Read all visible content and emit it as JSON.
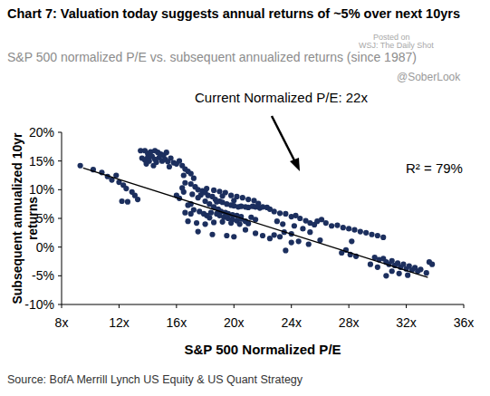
{
  "chart_data": {
    "type": "scatter",
    "title": "Chart 7: Valuation today suggests annual returns of ~5% over next 10yrs",
    "subtitle": "S&P 500 normalized P/E vs. subsequent annualized returns (since 1987)",
    "x_label": "S&P 500 Normalized P/E",
    "y_label": "Subsequent annualized 10yr returns",
    "source": "Source: BofA Merrill Lynch US Equity & US Quant Strategy",
    "annotations": [
      "Current Normalized P/E: 22x",
      "R² = 79%",
      "@SoberLook",
      "Posted on",
      "WSJ: The Daily Shot"
    ],
    "xlim": [
      8,
      36
    ],
    "ylim": [
      -10,
      20
    ],
    "xticks": [
      {
        "value": 8,
        "label": "8x"
      },
      {
        "value": 12,
        "label": "12x"
      },
      {
        "value": 16,
        "label": "16x"
      },
      {
        "value": 20,
        "label": "20x"
      },
      {
        "value": 24,
        "label": "24x"
      },
      {
        "value": 28,
        "label": "28x"
      },
      {
        "value": 32,
        "label": "32x"
      },
      {
        "value": 36,
        "label": "36x"
      }
    ],
    "yticks": [
      {
        "value": -10,
        "label": "-10%"
      },
      {
        "value": -5,
        "label": "-5%"
      },
      {
        "value": 0,
        "label": "0%"
      },
      {
        "value": 5,
        "label": "5%"
      },
      {
        "value": 10,
        "label": "10%"
      },
      {
        "value": 15,
        "label": "15%"
      },
      {
        "value": 20,
        "label": "20%"
      }
    ],
    "grid": false,
    "series": [
      {
        "type": "scatter",
        "color": "#1c2f5e",
        "marker": "circle",
        "x": [
          9.3,
          10.2,
          10.8,
          11.2,
          11.5,
          11.8,
          12.0,
          12.3,
          12.5,
          12.9,
          13.1,
          13.3,
          12.2,
          12.6,
          13.5,
          13.8,
          14.0,
          14.2,
          14.5,
          14.7,
          14.9,
          15.1,
          15.3,
          13.6,
          13.8,
          14.0,
          14.1,
          14.3,
          14.5,
          14.6,
          14.8,
          15.0,
          15.2,
          15.4,
          15.6,
          15.8,
          16.0,
          16.2,
          16.4,
          13.9,
          14.4,
          15.5,
          16.6,
          16.8,
          17.0,
          16.5,
          17.2,
          16.6,
          17.0,
          17.3,
          17.5,
          17.8,
          18.0,
          18.2,
          18.5,
          18.7,
          19.0,
          19.2,
          19.5,
          19.8,
          20.0,
          20.3,
          20.5,
          20.8,
          21.0,
          21.3,
          21.5,
          21.8,
          22.0,
          22.3,
          22.5,
          17.5,
          18.0,
          18.3,
          18.6,
          18.9,
          19.1,
          19.4,
          19.6,
          19.9,
          20.2,
          20.5,
          18.4,
          18.8,
          19.0,
          19.3,
          19.6,
          19.9,
          20.2,
          20.5,
          20.8,
          17.2,
          17.6,
          17.9,
          18.1,
          18.3,
          17.0,
          16.6,
          16.8,
          17.4,
          18.0,
          18.6,
          19.2,
          19.8,
          20.4,
          21.0,
          21.2,
          21.5,
          16.2,
          16.0,
          16.5,
          17.1,
          17.7,
          18.1,
          18.6,
          19.0,
          19.4,
          19.8,
          20.2,
          20.6,
          21.0,
          21.4,
          21.7,
          19.2,
          18.8,
          20.0,
          16.4,
          17.0,
          16.8,
          20.8,
          21.5,
          22.0,
          22.5,
          22.8,
          23.2,
          23.5,
          24.0,
          19.5,
          20.0,
          17.5,
          18.5,
          22.8,
          23.2,
          23.6,
          24.0,
          24.3,
          24.6,
          25.0,
          25.3,
          25.6,
          25.8,
          26.1,
          26.4,
          26.8,
          23.0,
          23.4,
          24.2,
          24.8,
          25.3,
          24.5,
          25.2,
          24.0,
          23.6,
          26.0,
          27.2,
          27.6,
          28.0,
          28.4,
          28.8,
          29.2,
          29.6,
          30.0,
          30.4,
          28.2,
          27.8,
          27.5,
          28.1,
          28.5,
          29.8,
          30.1,
          30.4,
          30.6,
          30.8,
          31.0,
          31.2,
          31.4,
          31.6,
          31.8,
          32.0,
          32.2,
          32.4,
          32.6,
          32.8,
          33.0,
          33.4,
          33.6,
          33.8,
          30.6,
          31.0,
          31.5,
          32.1,
          29.5,
          30.0
        ],
        "values": [
          14.2,
          13.5,
          13.0,
          12.3,
          11.7,
          12.5,
          11.3,
          10.8,
          10.2,
          9.6,
          9.0,
          8.3,
          8.0,
          7.9,
          16.8,
          16.8,
          16.3,
          16.6,
          16.8,
          16.5,
          16.2,
          16.0,
          16.5,
          15.5,
          15.2,
          15.6,
          15.0,
          15.8,
          15.3,
          14.8,
          15.6,
          15.0,
          15.3,
          14.9,
          15.5,
          14.7,
          14.5,
          15.0,
          14.2,
          14.5,
          14.2,
          14.0,
          13.6,
          13.2,
          12.8,
          12.5,
          12.0,
          11.2,
          11.0,
          10.5,
          10.0,
          9.8,
          9.5,
          9.0,
          8.8,
          8.3,
          8.0,
          7.8,
          7.5,
          7.3,
          7.2,
          7.0,
          7.1,
          7.0,
          6.9,
          7.1,
          7.0,
          6.8,
          7.0,
          6.9,
          6.6,
          8.6,
          8.0,
          7.5,
          7.0,
          6.6,
          6.2,
          6.0,
          5.8,
          5.6,
          5.5,
          5.3,
          6.0,
          5.8,
          5.5,
          5.2,
          5.0,
          4.8,
          4.6,
          4.9,
          4.5,
          6.5,
          6.2,
          5.8,
          5.5,
          5.1,
          5.8,
          6.0,
          4.5,
          4.2,
          4.0,
          4.3,
          4.4,
          4.2,
          4.0,
          4.1,
          5.2,
          4.8,
          8.5,
          9.0,
          9.6,
          9.2,
          9.1,
          10.2,
          9.9,
          9.7,
          9.5,
          9.0,
          8.8,
          8.6,
          8.3,
          8.1,
          7.6,
          8.9,
          7.9,
          8.1,
          10.3,
          7.5,
          7.3,
          3.0,
          2.4,
          2.0,
          1.5,
          2.1,
          1.8,
          2.6,
          2.3,
          2.0,
          1.8,
          2.7,
          2.2,
          6.2,
          5.9,
          5.8,
          5.3,
          5.5,
          5.0,
          4.6,
          4.2,
          3.9,
          4.5,
          4.8,
          4.2,
          3.7,
          4.5,
          4.0,
          3.7,
          3.2,
          2.6,
          1.0,
          0.5,
          0.8,
          -0.6,
          1.2,
          3.8,
          3.4,
          3.2,
          3.0,
          2.7,
          2.5,
          2.2,
          2.0,
          1.7,
          1.0,
          -0.5,
          -1.0,
          -1.3,
          -1.6,
          -1.8,
          -2.2,
          -2.0,
          -2.6,
          -3.0,
          -2.4,
          -3.2,
          -2.8,
          -3.5,
          -3.0,
          -3.8,
          -3.3,
          -4.0,
          -3.6,
          -4.2,
          -3.9,
          -4.5,
          -2.6,
          -3.0,
          -5.0,
          -4.2,
          -4.6,
          -4.9,
          -3.0,
          -3.5
        ]
      },
      {
        "type": "line",
        "color": "#000000",
        "line_style": "solid",
        "x": [
          9.5,
          33.5
        ],
        "values": [
          13.8,
          -5.3
        ]
      }
    ]
  }
}
